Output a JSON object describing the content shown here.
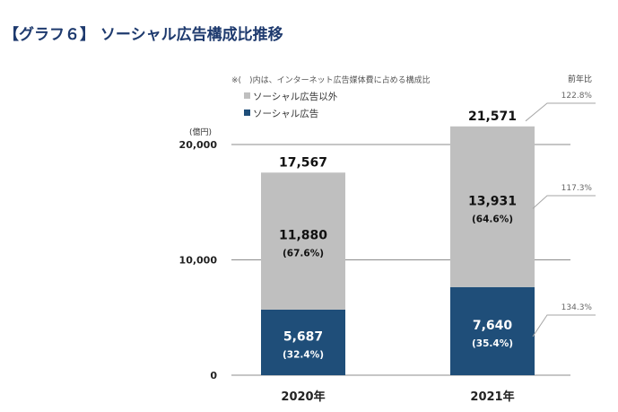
{
  "title": "【グラフ６】 ソーシャル広告構成比推移",
  "chart_data": {
    "type": "bar",
    "stacked": true,
    "note": "※(　)内は、インターネット広告媒体費に占める構成比",
    "ylabel": "(億円)",
    "ylim": [
      0,
      20000
    ],
    "yticks": [
      "0",
      "10,000",
      "20,000"
    ],
    "categories": [
      "2020年",
      "2021年"
    ],
    "series": [
      {
        "name": "ソーシャル広告",
        "values": [
          5687,
          7640
        ],
        "labels": [
          "5,687",
          "7,640"
        ],
        "shares": [
          "(32.4%)",
          "(35.4%)"
        ],
        "color": "#1f4e79"
      },
      {
        "name": "ソーシャル広告以外",
        "values": [
          11880,
          13931
        ],
        "labels": [
          "11,880",
          "13,931"
        ],
        "shares": [
          "(67.6%)",
          "(64.6%)"
        ],
        "color": "#bfbfbf"
      }
    ],
    "totals": [
      17567,
      21571
    ],
    "total_labels": [
      "17,567",
      "21,571"
    ],
    "yoy_title": "前年比",
    "yoy": {
      "total": "122.8%",
      "other": "117.3%",
      "social": "134.3%"
    },
    "legend_order": [
      1,
      0
    ],
    "grid": true
  }
}
